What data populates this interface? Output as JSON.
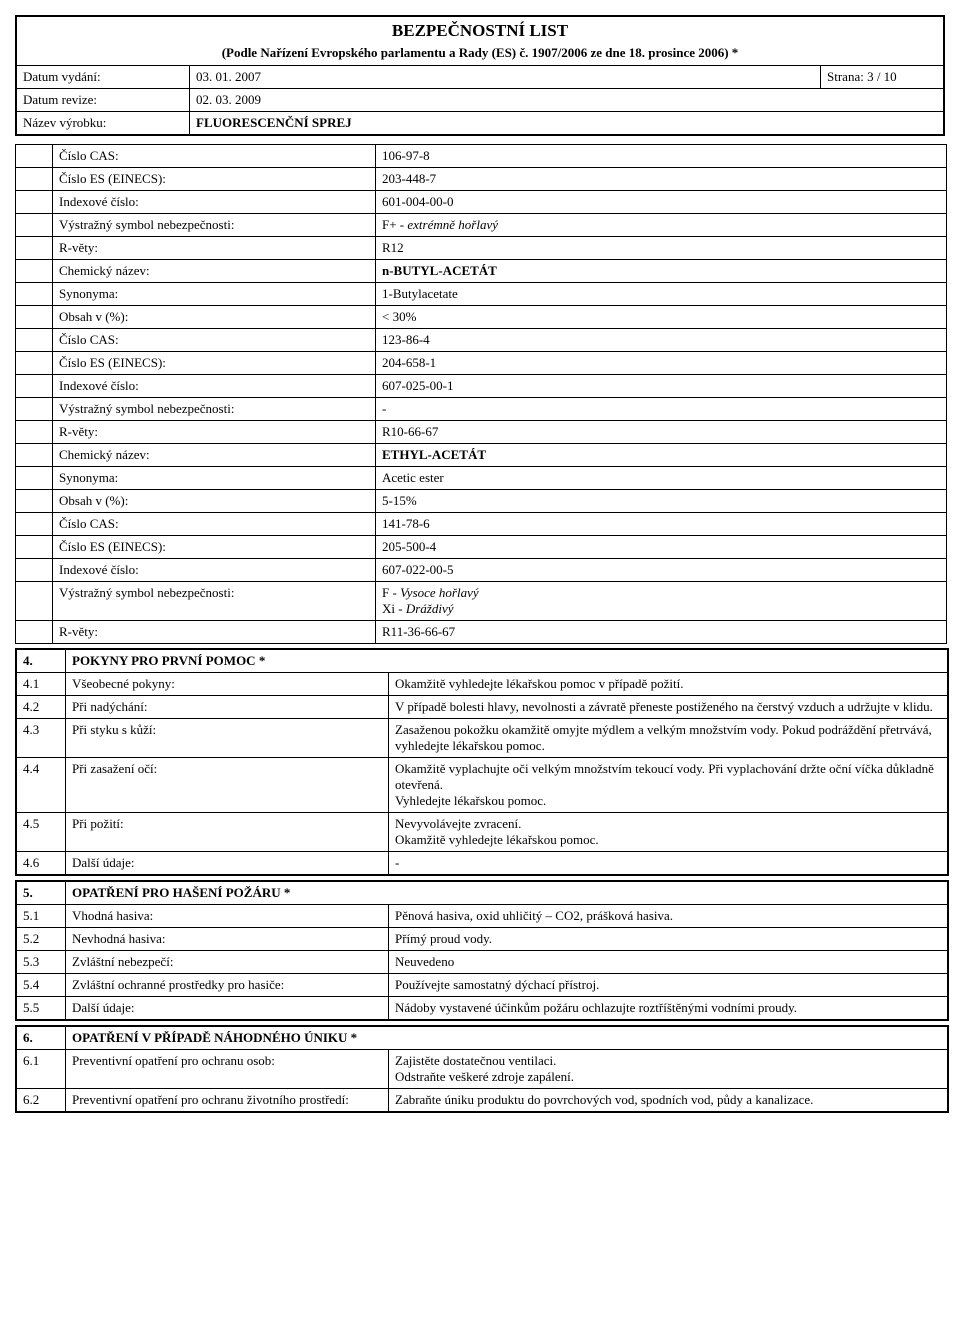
{
  "header": {
    "title": "BEZPEČNOSTNÍ LIST",
    "subtitle": "(Podle Nařízení Evropského parlamentu a Rady (ES) č. 1907/2006 ze dne 18. prosince 2006) *",
    "rows": [
      {
        "label": "Datum vydání:",
        "value": "03. 01. 2007",
        "page": "Strana: 3 / 10"
      },
      {
        "label": "Datum revize:",
        "value": "02. 03. 2009"
      },
      {
        "label": "Název výrobku:",
        "value": "FLUORESCENČNÍ SPREJ",
        "bold": true
      }
    ]
  },
  "chemicals": [
    {
      "label": "Číslo CAS:",
      "value": "106-97-8"
    },
    {
      "label": "Číslo ES (EINECS):",
      "value": "203-448-7"
    },
    {
      "label": "Indexové číslo:",
      "value": "601-004-00-0"
    },
    {
      "label": "Výstražný symbol nebezpečnosti:",
      "value": "F+ - extrémně hořlavý",
      "italic_part": "extrémně hořlavý"
    },
    {
      "label": "R-věty:",
      "value": "R12"
    },
    {
      "label": "Chemický název:",
      "value": "n-BUTYL-ACETÁT",
      "bold": true
    },
    {
      "label": "Synonyma:",
      "value": "1-Butylacetate"
    },
    {
      "label": "Obsah v (%):",
      "value": "< 30%"
    },
    {
      "label": "Číslo CAS:",
      "value": "123-86-4"
    },
    {
      "label": "Číslo ES (EINECS):",
      "value": "204-658-1"
    },
    {
      "label": "Indexové číslo:",
      "value": "607-025-00-1"
    },
    {
      "label": "Výstražný symbol nebezpečnosti:",
      "value": "-"
    },
    {
      "label": "R-věty:",
      "value": "R10-66-67"
    },
    {
      "label": "Chemický název:",
      "value": "ETHYL-ACETÁT",
      "bold": true
    },
    {
      "label": "Synonyma:",
      "value": "Acetic ester"
    },
    {
      "label": "Obsah v (%):",
      "value": "5-15%"
    },
    {
      "label": "Číslo CAS:",
      "value": "141-78-6"
    },
    {
      "label": "Číslo ES (EINECS):",
      "value": "205-500-4"
    },
    {
      "label": "Indexové číslo:",
      "value": "607-022-00-5"
    },
    {
      "label": "Výstražný symbol nebezpečnosti:",
      "value": "F - Vysoce hořlavý\nXi - Dráždivý",
      "multiline": true
    },
    {
      "label": "R-věty:",
      "value": "R11-36-66-67"
    }
  ],
  "section4": {
    "num": "4.",
    "title": "POKYNY PRO PRVNÍ POMOC *",
    "rows": [
      {
        "num": "4.1",
        "label": "Všeobecné pokyny:",
        "value": "Okamžitě vyhledejte lékařskou pomoc v případě požití."
      },
      {
        "num": "4.2",
        "label": "Při nadýchání:",
        "value": "V případě bolesti hlavy, nevolnosti a závratě přeneste postiženého na čerstvý vzduch a udržujte v klidu."
      },
      {
        "num": "4.3",
        "label": "Při styku s kůží:",
        "value": "Zasaženou pokožku okamžitě omyjte mýdlem a velkým množstvím vody. Pokud podráždění přetrvává, vyhledejte lékařskou pomoc."
      },
      {
        "num": "4.4",
        "label": "Při zasažení očí:",
        "value": "Okamžitě vyplachujte oči velkým množstvím tekoucí vody. Při vyplachování držte oční víčka důkladně otevřená.\nVyhledejte lékařskou pomoc."
      },
      {
        "num": "4.5",
        "label": "Při požití:",
        "value": "Nevyvolávejte zvracení.\nOkamžitě vyhledejte lékařskou pomoc."
      },
      {
        "num": "4.6",
        "label": "Další údaje:",
        "value": "-"
      }
    ]
  },
  "section5": {
    "num": "5.",
    "title": "OPATŘENÍ PRO HAŠENÍ POŽÁRU *",
    "rows": [
      {
        "num": "5.1",
        "label": "Vhodná hasiva:",
        "value": "Pěnová hasiva, oxid uhličitý – CO2, prášková hasiva."
      },
      {
        "num": "5.2",
        "label": "Nevhodná hasiva:",
        "value": "Přímý proud vody."
      },
      {
        "num": "5.3",
        "label": "Zvláštní nebezpečí:",
        "value": "Neuvedeno"
      },
      {
        "num": "5.4",
        "label": "Zvláštní ochranné prostředky pro hasiče:",
        "value": "Používejte samostatný dýchací přístroj."
      },
      {
        "num": "5.5",
        "label": "Další údaje:",
        "value": "Nádoby vystavené účinkům požáru ochlazujte roztříštěnými vodními proudy."
      }
    ]
  },
  "section6": {
    "num": "6.",
    "title": "OPATŘENÍ V PŘÍPADĚ NÁHODNÉHO ÚNIKU *",
    "rows": [
      {
        "num": "6.1",
        "label": "Preventivní opatření pro ochranu osob:",
        "value": "Zajistěte dostatečnou ventilaci.\nOdstraňte veškeré zdroje zapálení."
      },
      {
        "num": "6.2",
        "label": "Preventivní opatření pro ochranu životního prostředí:",
        "value": "Zabraňte úniku produktu do povrchových vod, spodních vod, půdy a kanalizace."
      }
    ]
  }
}
